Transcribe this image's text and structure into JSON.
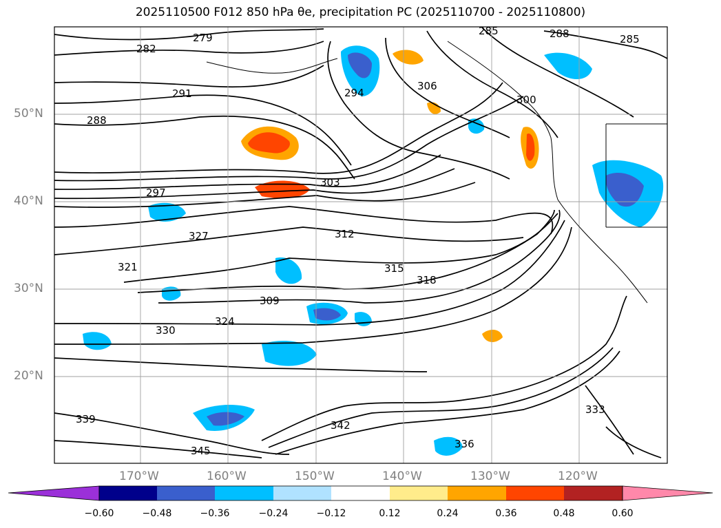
{
  "title": "2025110500 F012 850 hPa θe, precipitation PC (2025110700 - 2025110800)",
  "lat_labels": [
    "50°N",
    "40°N",
    "30°N",
    "20°N"
  ],
  "lon_labels": [
    "170°W",
    "160°W",
    "150°W",
    "140°W",
    "130°W",
    "120°W"
  ],
  "contour_labels": [
    "279",
    "282",
    "285",
    "288",
    "285",
    "288",
    "291",
    "294",
    "297",
    "300",
    "303",
    "306",
    "309",
    "312",
    "315",
    "318",
    "321",
    "324",
    "327",
    "330",
    "333",
    "336",
    "339",
    "342",
    "345"
  ],
  "colorbar": {
    "ticks": [
      "−0.60",
      "−0.48",
      "−0.36",
      "−0.24",
      "−0.12",
      "0.12",
      "0.24",
      "0.36",
      "0.48",
      "0.60"
    ],
    "colors": [
      "#9b30d9",
      "#00008b",
      "#3a5fcd",
      "#00bfff",
      "#b0e2ff",
      "#ffffff",
      "#ffec8b",
      "#ffa500",
      "#ff4500",
      "#b22222",
      "#ff88aa"
    ]
  },
  "colors": {
    "grid": "#a0a0a0",
    "contour": "#000000",
    "axis_label": "#808080"
  }
}
